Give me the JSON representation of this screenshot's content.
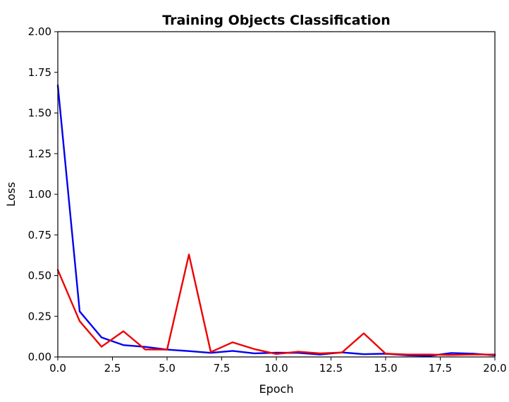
{
  "chart_data": {
    "type": "line",
    "title": "Training Objects Classification",
    "xlabel": "Epoch",
    "ylabel": "Loss",
    "xlim": [
      0,
      20
    ],
    "ylim": [
      0,
      2
    ],
    "grid": false,
    "xticks": [
      0,
      2.5,
      5,
      7.5,
      10,
      12.5,
      15,
      17.5,
      20
    ],
    "xtick_labels": [
      "0.0",
      "2.5",
      "5.0",
      "7.5",
      "10.0",
      "12.5",
      "15.0",
      "17.5",
      "20.0"
    ],
    "yticks": [
      0,
      0.25,
      0.5,
      0.75,
      1,
      1.25,
      1.5,
      1.75,
      2
    ],
    "ytick_labels": [
      "0.00",
      "0.25",
      "0.50",
      "0.75",
      "1.00",
      "1.25",
      "1.50",
      "1.75",
      "2.00"
    ],
    "x": [
      0,
      1,
      2,
      3,
      4,
      5,
      6,
      7,
      8,
      9,
      10,
      11,
      12,
      13,
      14,
      15,
      16,
      17,
      18,
      19,
      20
    ],
    "series": [
      {
        "color": "#0000ee",
        "values": [
          1.67,
          0.28,
          0.12,
          0.073,
          0.062,
          0.045,
          0.036,
          0.025,
          0.037,
          0.022,
          0.026,
          0.025,
          0.015,
          0.028,
          0.017,
          0.02,
          0.01,
          0.006,
          0.024,
          0.02,
          0.01
        ]
      },
      {
        "color": "#ee0000",
        "values": [
          0.535,
          0.22,
          0.063,
          0.158,
          0.046,
          0.045,
          0.63,
          0.03,
          0.09,
          0.048,
          0.018,
          0.032,
          0.022,
          0.027,
          0.145,
          0.02,
          0.015,
          0.015,
          0.012,
          0.015,
          0.015
        ]
      }
    ]
  }
}
